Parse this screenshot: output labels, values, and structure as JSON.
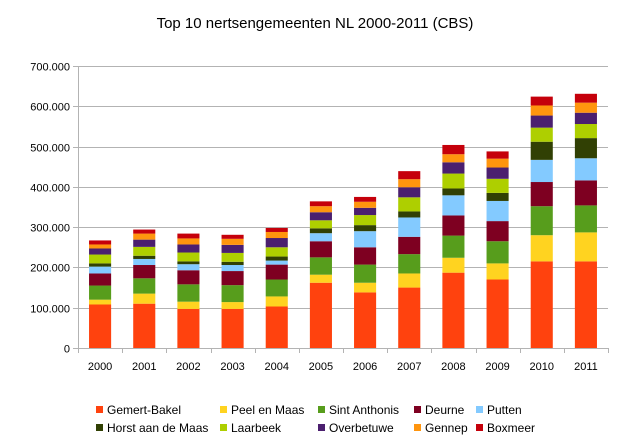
{
  "chart_data": {
    "type": "bar",
    "stacked": true,
    "title": "Top 10 nertsengemeenten NL 2000-2011 (CBS)",
    "xlabel": "",
    "ylabel": "",
    "ylim": [
      0,
      700000
    ],
    "yticks": [
      0,
      100000,
      200000,
      300000,
      400000,
      500000,
      600000,
      700000
    ],
    "ytick_labels": [
      "0",
      "100.000",
      "200.000",
      "300.000",
      "400.000",
      "500.000",
      "600.000",
      "700.000"
    ],
    "grid": true,
    "legend_position": "bottom",
    "categories": [
      "2000",
      "2001",
      "2002",
      "2003",
      "2004",
      "2005",
      "2006",
      "2007",
      "2008",
      "2009",
      "2010",
      "2011"
    ],
    "series": [
      {
        "name": "Gemert-Bakel",
        "color": "#ff420e",
        "values": [
          108000,
          110000,
          97000,
          97000,
          103000,
          162000,
          138000,
          150000,
          187000,
          170000,
          215000,
          215000
        ]
      },
      {
        "name": "Peel en Maas",
        "color": "#ffd320",
        "values": [
          12000,
          25000,
          18000,
          17000,
          25000,
          20000,
          24000,
          35000,
          37000,
          40000,
          65000,
          72000
        ]
      },
      {
        "name": "Sint Anthonis",
        "color": "#579d1c",
        "values": [
          35000,
          38000,
          43000,
          42000,
          42000,
          43000,
          45000,
          48000,
          55000,
          55000,
          72000,
          67000
        ]
      },
      {
        "name": "Deurne",
        "color": "#7e0021",
        "values": [
          30000,
          33000,
          35000,
          35000,
          37000,
          40000,
          43000,
          43000,
          50000,
          50000,
          60000,
          62000
        ]
      },
      {
        "name": "Putten",
        "color": "#83caff",
        "values": [
          17000,
          15000,
          15000,
          15000,
          10000,
          20000,
          40000,
          48000,
          50000,
          50000,
          55000,
          55000
        ]
      },
      {
        "name": "Horst aan de Maas",
        "color": "#314004",
        "values": [
          8000,
          8000,
          7000,
          8000,
          10000,
          12000,
          15000,
          15000,
          17000,
          20000,
          45000,
          50000
        ]
      },
      {
        "name": "Laarbeek",
        "color": "#aecf00",
        "values": [
          22000,
          22000,
          22000,
          22000,
          23000,
          20000,
          25000,
          35000,
          37000,
          35000,
          35000,
          35000
        ]
      },
      {
        "name": "Overbetuwe",
        "color": "#4b1f6f",
        "values": [
          15000,
          18000,
          20000,
          20000,
          23000,
          20000,
          18000,
          25000,
          28000,
          28000,
          30000,
          28000
        ]
      },
      {
        "name": "Gennep",
        "color": "#ff950e",
        "values": [
          10000,
          15000,
          15000,
          15000,
          15000,
          15000,
          15000,
          20000,
          20000,
          22000,
          25000,
          25000
        ]
      },
      {
        "name": "Boxmeer",
        "color": "#c5000b",
        "values": [
          10000,
          10000,
          12000,
          10000,
          10000,
          12000,
          12000,
          20000,
          23000,
          18000,
          22000,
          22000
        ]
      }
    ]
  }
}
